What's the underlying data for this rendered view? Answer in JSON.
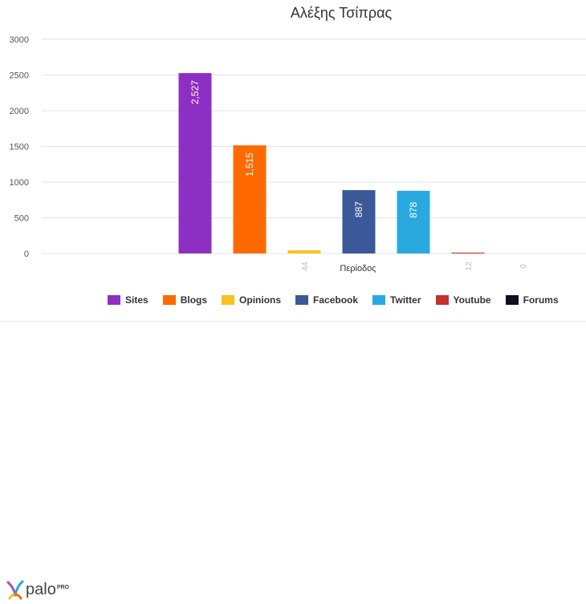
{
  "chart_data": {
    "type": "bar",
    "title": "Αλέξης Τσίπρας",
    "xlabel": "Περίοδος",
    "ylabel": "",
    "ylim": [
      0,
      3000
    ],
    "yticks": [
      0,
      500,
      1000,
      1500,
      2000,
      2500,
      3000
    ],
    "grid": true,
    "legend": "bottom",
    "series": [
      {
        "name": "Sites",
        "value": 2527,
        "label": "2,527",
        "color": "#8e2fc4"
      },
      {
        "name": "Blogs",
        "value": 1515,
        "label": "1,515",
        "color": "#ff6a00"
      },
      {
        "name": "Opinions",
        "value": 44,
        "label": "44",
        "color": "#f7c21d"
      },
      {
        "name": "Facebook",
        "value": 887,
        "label": "887",
        "color": "#3b5998"
      },
      {
        "name": "Twitter",
        "value": 878,
        "label": "878",
        "color": "#2aa9e0"
      },
      {
        "name": "Youtube",
        "value": 12,
        "label": "12",
        "color": "#c4302b"
      },
      {
        "name": "Forums",
        "value": 0,
        "label": "0",
        "color": "#0d0f1f"
      }
    ]
  },
  "brand": {
    "name": "palo",
    "suffix": "PRO"
  }
}
